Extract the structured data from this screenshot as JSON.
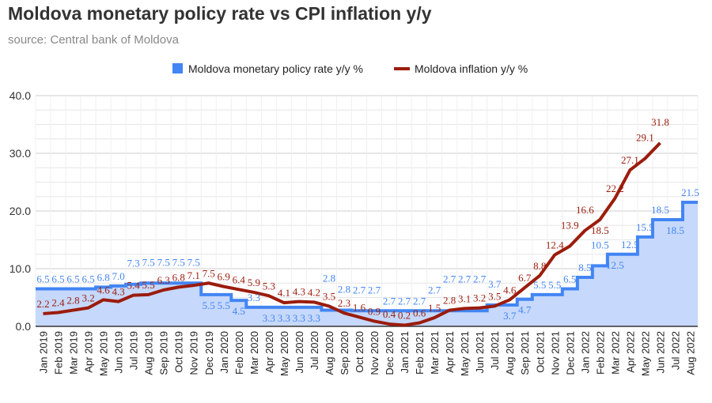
{
  "chart_data": {
    "type": "line",
    "title": "Moldova monetary policy rate vs CPI inflation y/y",
    "subtitle": "source: Central bank of Moldova",
    "legend_position": "top",
    "grid": true,
    "ylim": [
      0,
      40
    ],
    "yticks": [
      "0.0",
      "10.0",
      "20.0",
      "30.0",
      "40.0"
    ],
    "categories": [
      "Jan 2019",
      "Feb 2019",
      "Mar 2019",
      "Apr 2019",
      "May 2019",
      "Jun 2019",
      "Jul 2019",
      "Aug 2019",
      "Sep 2019",
      "Oct 2019",
      "Nov 2019",
      "Dec 2019",
      "Jan 2020",
      "Feb 2020",
      "Mar 2020",
      "Apr 2020",
      "May 2020",
      "Jun 2020",
      "Jul 2020",
      "Aug 2020",
      "Sep 2020",
      "Oct 2020",
      "Nov 2020",
      "Dec 2020",
      "Jan 2021",
      "Feb 2021",
      "Mar 2021",
      "Apr 2021",
      "May 2021",
      "Jun 2021",
      "Jul 2021",
      "Aug 2021",
      "Sep 2021",
      "Oct 2021",
      "Nov 2021",
      "Dec 2021",
      "Jan 2022",
      "Feb 2022",
      "Mar 2022",
      "Apr 2022",
      "May 2022",
      "Jun 2022",
      "Jul 2022",
      "Aug 2022"
    ],
    "series": [
      {
        "name": "Moldova monetary policy rate y/y %",
        "style": "stepped-area",
        "color": "#4285f4",
        "fill": "#c6d8fb",
        "values": [
          6.5,
          6.5,
          6.5,
          6.5,
          6.8,
          7.0,
          7.3,
          7.5,
          7.5,
          7.5,
          7.5,
          5.5,
          5.5,
          4.5,
          3.3,
          3.3,
          3.3,
          3.3,
          3.3,
          2.8,
          2.8,
          2.7,
          2.7,
          2.7,
          2.7,
          2.7,
          2.7,
          2.7,
          2.7,
          2.7,
          3.7,
          3.7,
          4.7,
          5.5,
          5.5,
          6.5,
          8.5,
          10.5,
          12.5,
          12.5,
          15.5,
          18.5,
          18.5,
          21.5
        ]
      },
      {
        "name": "Moldova inflation y/y %",
        "style": "line",
        "color": "#9b1c0c",
        "values": [
          2.2,
          2.4,
          2.8,
          3.2,
          4.6,
          4.3,
          5.4,
          5.5,
          6.3,
          6.8,
          7.1,
          7.5,
          6.9,
          6.4,
          5.9,
          5.3,
          4.1,
          4.3,
          4.2,
          3.5,
          2.3,
          1.6,
          0.9,
          0.4,
          0.2,
          0.6,
          1.5,
          2.8,
          3.1,
          3.2,
          3.5,
          4.6,
          6.7,
          8.8,
          12.4,
          13.9,
          16.6,
          18.5,
          22.2,
          27.1,
          29.1,
          31.8,
          null,
          null
        ]
      }
    ]
  }
}
